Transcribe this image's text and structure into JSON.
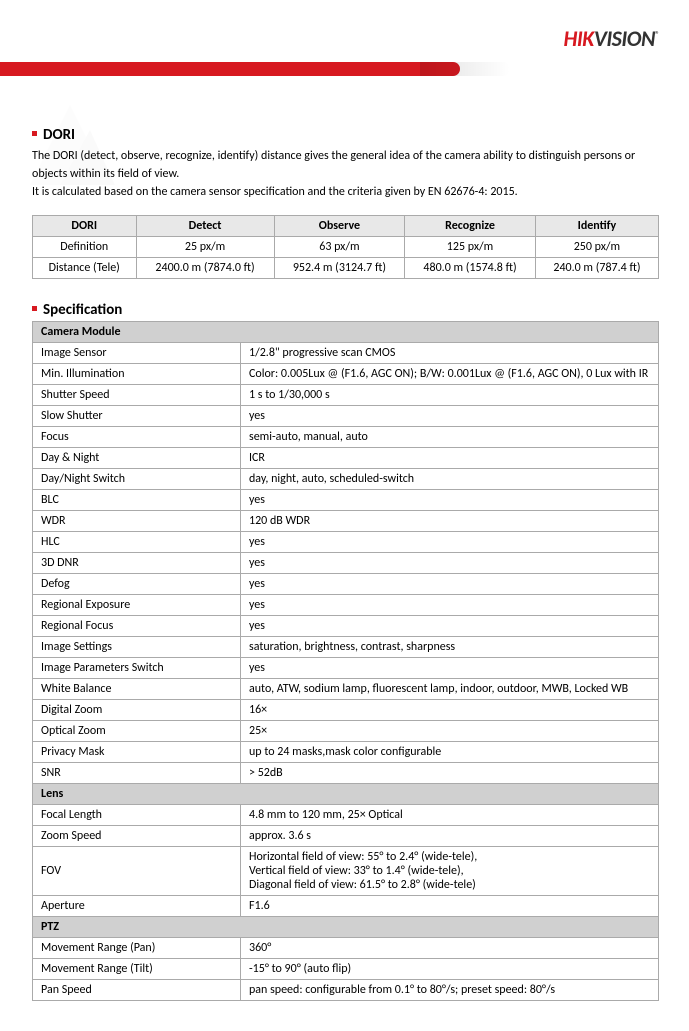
{
  "logo": {
    "hik": "HIK",
    "vision": "VISION",
    "r": "®"
  },
  "colors": {
    "accent": "#d71920",
    "header_bg": "#e8e8e8",
    "section_bg": "#d0d0d0",
    "border": "#aaaaaa"
  },
  "dori": {
    "title": "DORI",
    "intro1": "The DORI (detect, observe, recognize, identify) distance gives the general idea of the camera ability to distinguish persons or objects within its field of view.",
    "intro2": "It is calculated based on the camera sensor specification and the criteria given by EN 62676-4: 2015.",
    "table": {
      "headers": [
        "DORI",
        "Detect",
        "Observe",
        "Recognize",
        "Identify"
      ],
      "rows": [
        [
          "Definition",
          "25 px/m",
          "63 px/m",
          "125 px/m",
          "250 px/m"
        ],
        [
          "Distance (Tele)",
          "2400.0 m (7874.0 ft)",
          "952.4 m (3124.7 ft)",
          "480.0 m (1574.8 ft)",
          "240.0 m (787.4 ft)"
        ]
      ],
      "col_widths": [
        "20%",
        "20%",
        "20%",
        "20%",
        "20%"
      ]
    }
  },
  "spec": {
    "title": "Specification",
    "sections": [
      {
        "header": "Camera Module",
        "rows": [
          [
            "Image Sensor",
            "1/2.8\" progressive scan CMOS"
          ],
          [
            "Min. Illumination",
            "Color: 0.005Lux @ (F1.6, AGC ON); B/W: 0.001Lux @ (F1.6, AGC ON), 0 Lux with IR"
          ],
          [
            "Shutter Speed",
            "1 s to 1/30,000 s"
          ],
          [
            "Slow Shutter",
            "yes"
          ],
          [
            "Focus",
            "semi-auto, manual, auto"
          ],
          [
            "Day & Night",
            "ICR"
          ],
          [
            "Day/Night Switch",
            "day, night, auto, scheduled-switch"
          ],
          [
            "BLC",
            "yes"
          ],
          [
            "WDR",
            "120 dB WDR"
          ],
          [
            "HLC",
            "yes"
          ],
          [
            "3D DNR",
            "yes"
          ],
          [
            "Defog",
            "yes"
          ],
          [
            "Regional Exposure",
            "yes"
          ],
          [
            "Regional Focus",
            "yes"
          ],
          [
            "Image Settings",
            "saturation, brightness, contrast, sharpness"
          ],
          [
            "Image Parameters Switch",
            "yes"
          ],
          [
            "White Balance",
            "auto, ATW, sodium lamp, fluorescent lamp, indoor, outdoor, MWB, Locked WB"
          ],
          [
            "Digital Zoom",
            "16×"
          ],
          [
            "Optical Zoom",
            "25×"
          ],
          [
            "Privacy Mask",
            "up to 24 masks,mask color configurable"
          ],
          [
            "SNR",
            "> 52dB"
          ]
        ]
      },
      {
        "header": "Lens",
        "rows": [
          [
            "Focal Length",
            "4.8 mm to 120 mm, 25× Optical"
          ],
          [
            "Zoom Speed",
            "approx. 3.6 s"
          ],
          [
            "FOV",
            "Horizontal field of view: 55° to 2.4° (wide-tele),\nVertical field of view: 33° to 1.4° (wide-tele),\nDiagonal field of view: 61.5° to 2.8° (wide-tele)"
          ],
          [
            "Aperture",
            "F1.6"
          ]
        ]
      },
      {
        "header": "PTZ",
        "rows": [
          [
            "Movement Range (Pan)",
            "360°"
          ],
          [
            "Movement Range (Tilt)",
            "-15° to 90° (auto flip)"
          ],
          [
            "Pan Speed",
            "pan speed: configurable from 0.1° to 80°/s; preset speed: 80°/s"
          ]
        ]
      }
    ]
  }
}
